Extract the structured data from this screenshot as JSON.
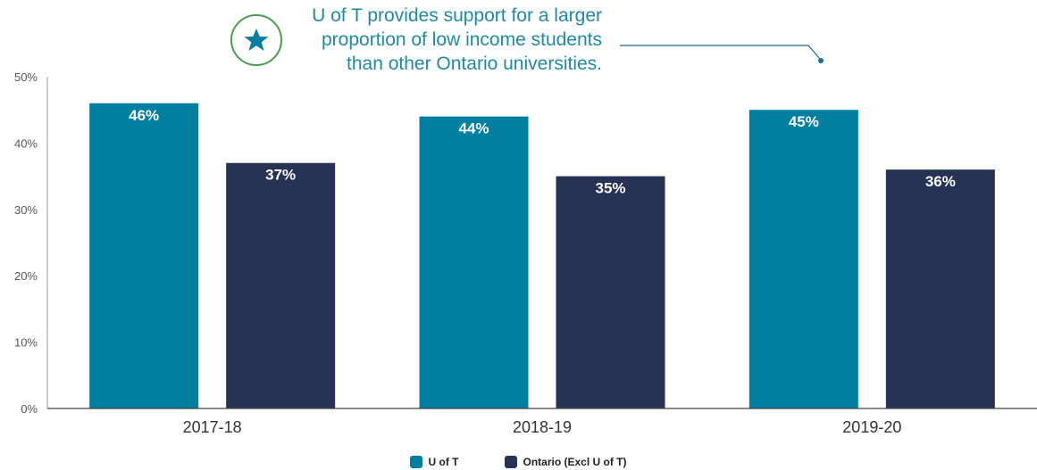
{
  "callout": {
    "lines": [
      "U of T provides support for a larger",
      "proportion of low income students",
      "than other Ontario universities."
    ],
    "icon": "star-icon",
    "colors": {
      "text": "#1f8aa3",
      "ring": "#4e9a55",
      "star": "#0a7ea1",
      "leader": "#1a6e86"
    }
  },
  "chart_data": {
    "type": "bar",
    "categories": [
      "2017-18",
      "2018-19",
      "2019-20"
    ],
    "series": [
      {
        "name": "U of T",
        "values": [
          46,
          44,
          45
        ],
        "labels": [
          "46%",
          "44%",
          "45%"
        ],
        "color": "#017fa0"
      },
      {
        "name": "Ontario (Excl U of T)",
        "values": [
          37,
          35,
          36
        ],
        "labels": [
          "37%",
          "35%",
          "36%"
        ],
        "color": "#263355"
      }
    ],
    "ylim": [
      0,
      50
    ],
    "yticks": [
      0,
      10,
      20,
      30,
      40,
      50
    ],
    "ytick_labels": [
      "0%",
      "10%",
      "20%",
      "30%",
      "40%",
      "50%"
    ],
    "grid": false,
    "legend_position": "bottom-center",
    "data_labels": "inside-top"
  }
}
